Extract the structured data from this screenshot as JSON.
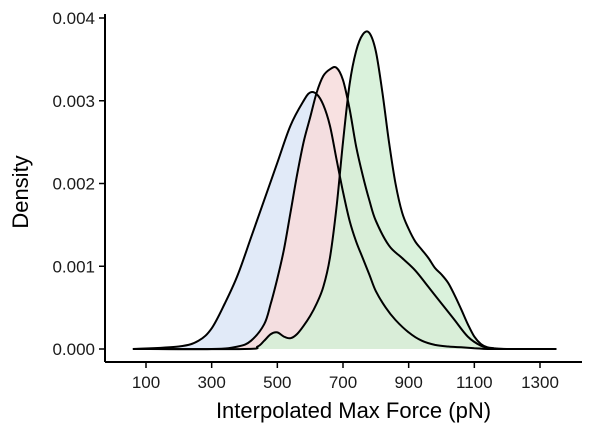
{
  "chart_data": {
    "type": "area",
    "title": "",
    "xlabel": "Interpolated Max Force (pN)",
    "ylabel": "Density",
    "xlim": [
      50,
      1360
    ],
    "ylim": [
      0,
      0.004
    ],
    "x_ticks": [
      100,
      300,
      500,
      700,
      900,
      1100,
      1300
    ],
    "x_tick_labels": [
      "100",
      "300",
      "500",
      "700",
      "900",
      "1100",
      "1300"
    ],
    "y_ticks": [
      0.0,
      0.001,
      0.002,
      0.003,
      0.004
    ],
    "y_tick_labels": [
      "0.000",
      "0.001",
      "0.002",
      "0.003",
      "0.004"
    ],
    "grid": false,
    "legend": "none",
    "series": [
      {
        "color": "#dce6f7",
        "x": [
          60,
          200,
          260,
          300,
          340,
          380,
          420,
          460,
          500,
          540,
          580,
          600,
          620,
          640,
          660,
          680,
          700,
          720,
          740,
          760,
          780,
          800,
          830,
          860,
          900,
          940,
          980,
          1020,
          1060,
          1100,
          1140,
          1200,
          1350
        ],
        "y": [
          0,
          3e-05,
          0.0001,
          0.00025,
          0.00055,
          0.0009,
          0.00135,
          0.0018,
          0.00225,
          0.0027,
          0.003,
          0.0031,
          0.00308,
          0.00295,
          0.0027,
          0.0023,
          0.0019,
          0.00155,
          0.0013,
          0.0011,
          0.0009,
          0.0007,
          0.0005,
          0.00035,
          0.0002,
          0.0001,
          5e-05,
          3e-05,
          2e-05,
          1e-05,
          0,
          0,
          0
        ]
      },
      {
        "color": "#f7dcdc",
        "x": [
          60,
          300,
          380,
          420,
          460,
          480,
          500,
          520,
          540,
          560,
          580,
          600,
          620,
          640,
          660,
          680,
          700,
          720,
          740,
          760,
          780,
          800,
          840,
          880,
          920,
          960,
          1000,
          1040,
          1080,
          1120,
          1150,
          1200,
          1350
        ],
        "y": [
          0,
          0,
          3e-05,
          0.0001,
          0.0003,
          0.00055,
          0.00085,
          0.0012,
          0.00165,
          0.0021,
          0.0025,
          0.0028,
          0.0031,
          0.0033,
          0.00338,
          0.0034,
          0.00325,
          0.0029,
          0.00245,
          0.0021,
          0.0018,
          0.00155,
          0.00125,
          0.0011,
          0.00095,
          0.00075,
          0.00055,
          0.00035,
          0.00015,
          4e-05,
          1e-05,
          0,
          0
        ]
      },
      {
        "color": "#d3f0d6",
        "x": [
          60,
          400,
          440,
          460,
          480,
          500,
          520,
          540,
          560,
          580,
          600,
          620,
          640,
          660,
          680,
          700,
          720,
          740,
          760,
          780,
          800,
          820,
          840,
          860,
          880,
          900,
          920,
          940,
          960,
          980,
          1000,
          1020,
          1040,
          1060,
          1080,
          1100,
          1120,
          1140,
          1160,
          1200,
          1350
        ],
        "y": [
          0,
          0,
          3e-05,
          0.0001,
          0.00018,
          0.0002,
          0.00015,
          0.00013,
          0.00018,
          0.00028,
          0.0004,
          0.00055,
          0.00075,
          0.0011,
          0.0017,
          0.0025,
          0.0032,
          0.0036,
          0.0038,
          0.00382,
          0.0036,
          0.0031,
          0.0025,
          0.002,
          0.00165,
          0.00145,
          0.0013,
          0.0012,
          0.0011,
          0.00098,
          0.0009,
          0.0008,
          0.00065,
          0.00048,
          0.0003,
          0.00015,
          6e-05,
          2e-05,
          1e-05,
          0,
          0
        ]
      }
    ]
  }
}
